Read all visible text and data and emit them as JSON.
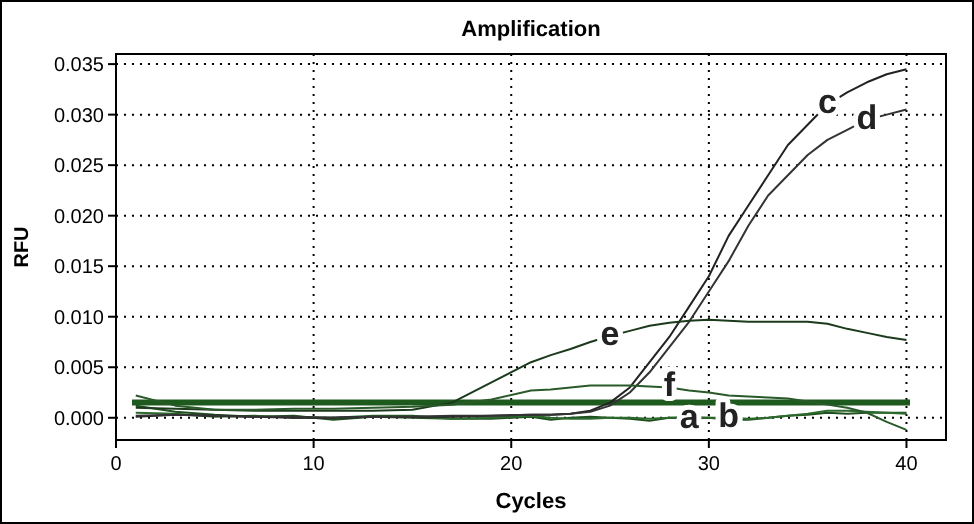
{
  "chart_data": {
    "type": "line",
    "title": "Amplification",
    "xlabel": "Cycles",
    "ylabel": "RFU",
    "xlim": [
      0,
      42
    ],
    "ylim": [
      -0.0022,
      0.036
    ],
    "xticks": [
      0,
      10,
      20,
      30,
      40
    ],
    "yticks": [
      {
        "value": 0,
        "label": "0.000"
      },
      {
        "value": 0.005,
        "label": "0.005"
      },
      {
        "value": 0.01,
        "label": "0.010"
      },
      {
        "value": 0.015,
        "label": "0.015"
      },
      {
        "value": 0.02,
        "label": "0.020"
      },
      {
        "value": 0.025,
        "label": "0.025"
      },
      {
        "value": 0.03,
        "label": "0.030"
      },
      {
        "value": 0.035,
        "label": "0.035"
      }
    ],
    "grid": true,
    "line_style": "solid",
    "x": [
      1,
      3,
      5,
      7,
      9,
      11,
      13,
      15,
      17,
      19,
      21,
      22,
      23,
      24,
      25,
      26,
      27,
      28,
      29,
      30,
      31,
      32,
      33,
      34,
      35,
      36,
      37,
      38,
      39,
      40
    ],
    "series": [
      {
        "color": "#1f4f1f",
        "values": [
          0.0012,
          0.0006,
          0.0003,
          0.0001,
          0.0002,
          -0.0002,
          0.0001,
          0.0,
          -0.0001,
          -0.0001,
          0.0001,
          -0.0002,
          0.0,
          0.0001,
          0.0,
          -0.0001,
          -0.0003,
          0.0,
          -0.0001,
          0.0,
          -0.0002,
          -0.0002,
          0.0,
          0.0002,
          0.0003,
          0.0005,
          0.0004,
          0.0005,
          0.0005,
          0.0005
        ]
      },
      {
        "color": "#2d6a2d",
        "values": [
          0.0005,
          0.0004,
          0.0001,
          0.0002,
          0.0,
          0.0,
          0.0002,
          0.0002,
          -0.0001,
          0.0,
          0.0002,
          0.0,
          -0.0001,
          -0.0001,
          0.0,
          0.0,
          -0.0001,
          0.0,
          0.0001,
          0.0,
          0.0,
          -0.0001,
          0.0,
          0.0002,
          0.0004,
          0.0007,
          0.0007,
          0.0006,
          0.0005,
          0.0004
        ]
      },
      {
        "color": "#222222",
        "values": [
          0.0001,
          0.0003,
          0.0002,
          0.0001,
          0.0,
          0.0,
          0.0001,
          0.0001,
          0.0001,
          0.0002,
          0.0003,
          0.0003,
          0.0004,
          0.0007,
          0.0015,
          0.003,
          0.0055,
          0.008,
          0.011,
          0.014,
          0.018,
          0.021,
          0.024,
          0.027,
          0.029,
          0.031,
          0.0322,
          0.0332,
          0.034,
          0.0345
        ]
      },
      {
        "color": "#333333",
        "values": [
          0.0002,
          0.0003,
          0.0002,
          0.0001,
          0.0001,
          0.0,
          0.0001,
          0.0001,
          0.0002,
          0.0002,
          0.0003,
          0.0003,
          0.0004,
          0.0006,
          0.0012,
          0.0025,
          0.0045,
          0.007,
          0.0095,
          0.0125,
          0.0155,
          0.019,
          0.022,
          0.024,
          0.026,
          0.0275,
          0.0285,
          0.0295,
          0.03,
          0.0305
        ]
      },
      {
        "color": "#1c3a1c",
        "values": [
          0.001,
          0.0009,
          0.0008,
          0.0007,
          0.0007,
          0.0007,
          0.0007,
          0.0008,
          0.0015,
          0.0035,
          0.0055,
          0.0062,
          0.0068,
          0.0075,
          0.0081,
          0.0086,
          0.0091,
          0.0094,
          0.0096,
          0.0097,
          0.0096,
          0.0095,
          0.0095,
          0.0095,
          0.0095,
          0.0093,
          0.0088,
          0.0084,
          0.008,
          0.0077
        ]
      },
      {
        "color": "#2a5a2a",
        "values": [
          0.0022,
          0.0012,
          0.0008,
          0.0008,
          0.0009,
          0.0009,
          0.001,
          0.0011,
          0.0013,
          0.0018,
          0.0027,
          0.0028,
          0.003,
          0.0032,
          0.0032,
          0.0032,
          0.0031,
          0.003,
          0.0027,
          0.0025,
          0.0022,
          0.0021,
          0.002,
          0.0019,
          0.0016,
          0.0013,
          0.001,
          0.0005,
          -0.0004,
          -0.0012
        ]
      }
    ],
    "ref_lines": [
      {
        "axis": "y",
        "value": 0.0015,
        "color": "#1e5a1e"
      }
    ],
    "annotations": [
      {
        "text": "a",
        "x": 29,
        "y": -0.0001
      },
      {
        "text": "b",
        "x": 31,
        "y": 0
      },
      {
        "text": "c",
        "x": 36,
        "y": 0.031
      },
      {
        "text": "d",
        "x": 38,
        "y": 0.0295
      },
      {
        "text": "e",
        "x": 25,
        "y": 0.0081
      },
      {
        "text": "f",
        "x": 28,
        "y": 0.003
      }
    ]
  }
}
